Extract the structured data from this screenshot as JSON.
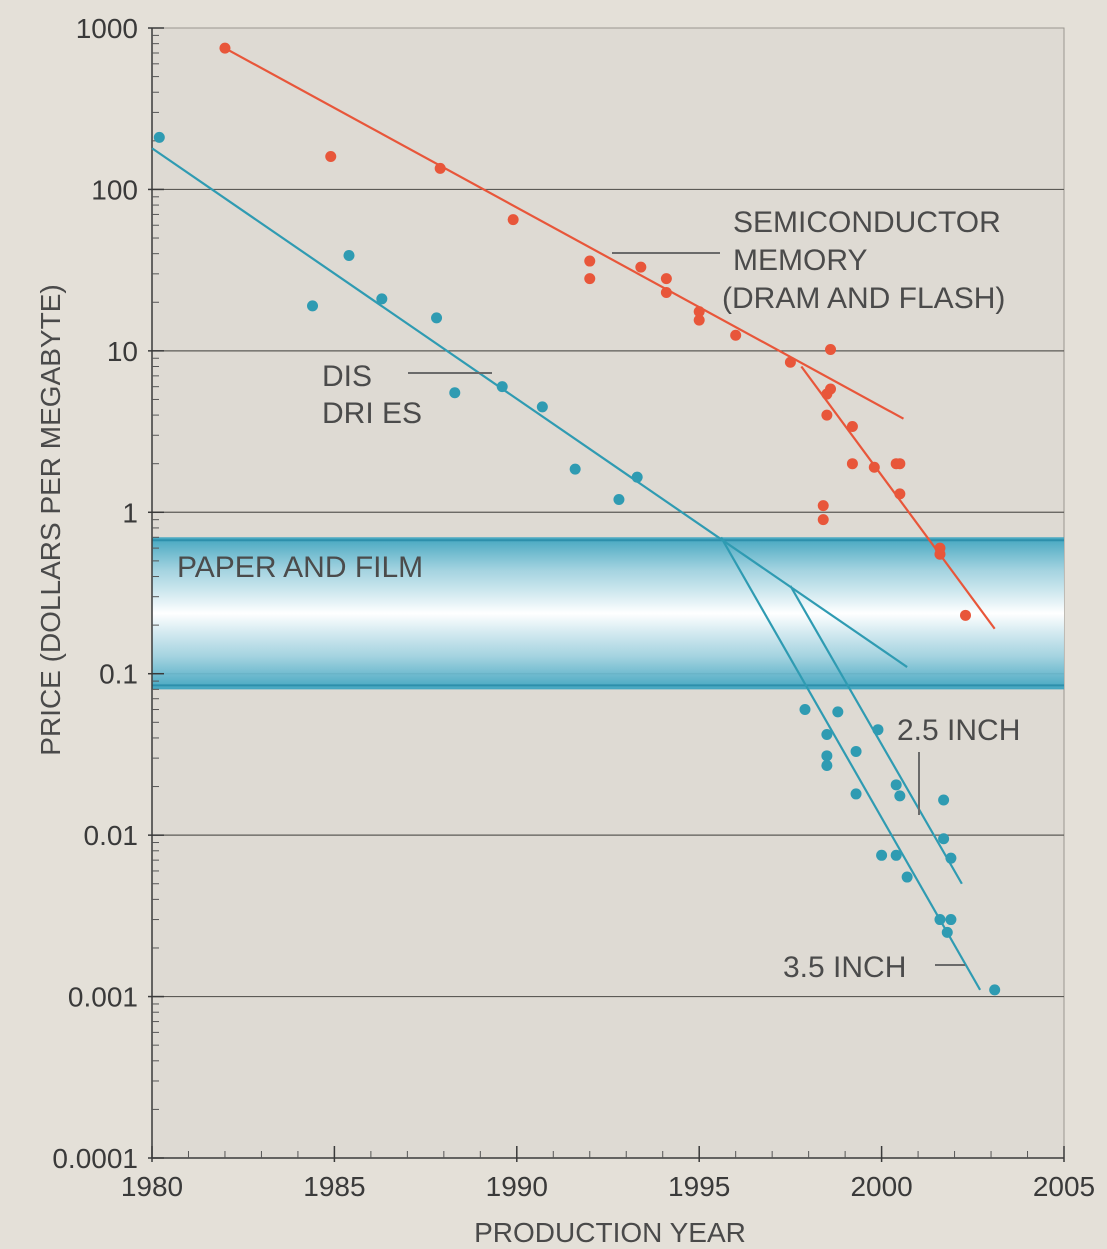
{
  "chart_data": {
    "type": "scatter",
    "title": "",
    "xlabel": "PRODUCTION YEAR",
    "ylabel": "PRICE (DOLLARS PER MEGABYTE)",
    "x_scale": "linear",
    "y_scale": "log",
    "xlim": [
      1980,
      2005
    ],
    "ylim": [
      0.0001,
      1000
    ],
    "x_ticks": [
      1980,
      1985,
      1990,
      1995,
      2000,
      2005
    ],
    "x_tick_labels": [
      "1980",
      "1985",
      "1990",
      "1995",
      "2000",
      "2005"
    ],
    "y_ticks": [
      0.0001,
      0.001,
      0.01,
      0.1,
      1,
      10,
      100,
      1000
    ],
    "y_tick_labels": [
      "0.0001",
      "0.001",
      "0.01",
      "0.1",
      "1",
      "10",
      "100",
      "1000"
    ],
    "grid": "horizontal at decades",
    "colors": {
      "semiconductor": "#e8563a",
      "disk": "#2f9bb2",
      "background": "#e4e0d8",
      "plot_bg": "#dedad3",
      "band": "#3ba3bf"
    },
    "band": {
      "label": "PAPER AND FILM",
      "y_range": [
        0.08,
        0.7
      ]
    },
    "series": [
      {
        "color": "#e8563a",
        "points": [
          [
            1982.0,
            750
          ],
          [
            1984.9,
            160
          ],
          [
            1987.9,
            135
          ],
          [
            1989.9,
            65
          ],
          [
            1992.0,
            36
          ],
          [
            1992.0,
            28
          ],
          [
            1993.4,
            33
          ],
          [
            1994.1,
            28
          ],
          [
            1994.1,
            23
          ],
          [
            1995.0,
            17.5
          ],
          [
            1995.0,
            15.5
          ],
          [
            1996.0,
            12.5
          ],
          [
            1997.5,
            8.5
          ],
          [
            1998.6,
            10.2
          ],
          [
            1998.6,
            5.8
          ],
          [
            1998.5,
            5.4
          ],
          [
            1998.5,
            4.0
          ],
          [
            1999.2,
            3.4
          ],
          [
            1999.2,
            2.0
          ],
          [
            1999.8,
            1.9
          ],
          [
            2000.4,
            2.0
          ],
          [
            2000.5,
            2.0
          ],
          [
            2000.5,
            1.3
          ],
          [
            1998.4,
            1.1
          ],
          [
            1998.4,
            0.9
          ],
          [
            2001.6,
            0.6
          ],
          [
            2001.6,
            0.55
          ],
          [
            2002.3,
            0.23
          ]
        ],
        "trend_lines": [
          [
            [
              1982.0,
              750
            ],
            [
              2000.6,
              3.8
            ]
          ],
          [
            [
              1997.8,
              8.0
            ],
            [
              2003.1,
              0.19
            ]
          ]
        ]
      },
      {
        "color": "#2f9bb2",
        "points": [
          [
            1980.2,
            210
          ],
          [
            1984.4,
            19
          ],
          [
            1985.4,
            39
          ],
          [
            1986.3,
            21
          ],
          [
            1987.8,
            16
          ],
          [
            1988.3,
            5.5
          ],
          [
            1989.6,
            6.0
          ],
          [
            1990.7,
            4.5
          ],
          [
            1991.6,
            1.85
          ],
          [
            1992.8,
            1.2
          ],
          [
            1993.3,
            1.65
          ],
          [
            1997.9,
            0.06
          ],
          [
            1998.5,
            0.042
          ],
          [
            1998.5,
            0.031
          ],
          [
            1998.5,
            0.027
          ],
          [
            1998.8,
            0.058
          ],
          [
            1999.3,
            0.033
          ],
          [
            1999.3,
            0.018
          ],
          [
            1999.9,
            0.045
          ],
          [
            2000.0,
            0.0075
          ],
          [
            2000.4,
            0.0075
          ],
          [
            2000.4,
            0.0205
          ],
          [
            2000.5,
            0.0175
          ],
          [
            2000.7,
            0.0055
          ],
          [
            2001.6,
            0.003
          ],
          [
            2001.7,
            0.0165
          ],
          [
            2001.7,
            0.0095
          ],
          [
            2001.8,
            0.0025
          ],
          [
            2001.9,
            0.003
          ],
          [
            2001.9,
            0.0072
          ],
          [
            2003.1,
            0.0011
          ]
        ],
        "trend_lines": [
          [
            [
              1980.0,
              180
            ],
            [
              2000.7,
              0.11
            ]
          ],
          [
            [
              1995.6,
              0.7
            ],
            [
              2002.7,
              0.0011
            ]
          ],
          [
            [
              1997.5,
              0.35
            ],
            [
              2002.2,
              0.005
            ]
          ]
        ]
      }
    ],
    "annotations": [
      {
        "lines": [
          "SEMICONDUCTOR",
          "MEMORY",
          "(DRAM AND FLASH)"
        ]
      },
      {
        "lines": [
          "DIS",
          "DRI ES"
        ]
      },
      {
        "lines": [
          "2.5 INCH"
        ]
      },
      {
        "lines": [
          "3.5 INCH"
        ]
      }
    ]
  }
}
